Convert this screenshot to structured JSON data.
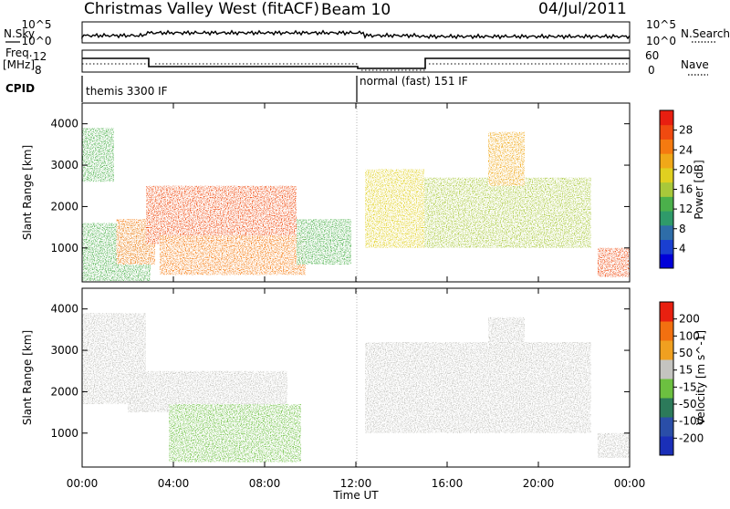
{
  "header": {
    "title": "Christmas Valley West (fitACF)",
    "beam": "Beam 10",
    "date": "04/Jul/2011"
  },
  "status_panel": {
    "nsky_label": "N.Sky",
    "nsky_ticks": [
      "10^5",
      "10^0"
    ],
    "nsearch_label": "N.Search",
    "freq_label_1": "Freq.",
    "freq_label_2": "[MHz]",
    "freq_ticks": [
      "12",
      "8"
    ],
    "nave_label": "Nave",
    "nave_ticks": [
      "60",
      "0"
    ],
    "right_ticks": [
      "10^5",
      "10^0"
    ],
    "cpid_label": "CPID",
    "cpid_segments": [
      "themis 3300 IF",
      "normal (fast) 151 IF"
    ]
  },
  "chart_data": [
    {
      "type": "heatmap",
      "variable": "Power",
      "ylabel": "Slant Range [km]",
      "ylim": [
        180,
        4500
      ],
      "yticks": [
        1000,
        2000,
        3000,
        4000
      ],
      "xlim": [
        "00:00",
        "00:00"
      ],
      "grid": false,
      "colorbar": {
        "label": "Power [dB]",
        "range": [
          0,
          32
        ],
        "ticks": [
          "28",
          "24",
          "20",
          "16",
          "12",
          "8",
          "4"
        ],
        "colors": [
          "#0000d8",
          "#1a3fd0",
          "#2e6da8",
          "#2f9a6a",
          "#4bb04b",
          "#a8c83a",
          "#e0d020",
          "#f0a818",
          "#f57a10",
          "#f04a10",
          "#e81e10"
        ]
      },
      "regions": [
        {
          "start_h": 0.0,
          "end_h": 1.4,
          "range_min": 2600,
          "range_max": 3900,
          "power_db": 12
        },
        {
          "start_h": 0.0,
          "end_h": 3.0,
          "range_min": 200,
          "range_max": 1600,
          "power_db": 14
        },
        {
          "start_h": 1.5,
          "end_h": 3.2,
          "range_min": 600,
          "range_max": 1700,
          "power_db": 26
        },
        {
          "start_h": 2.8,
          "end_h": 9.4,
          "range_min": 1100,
          "range_max": 2500,
          "power_db": 28
        },
        {
          "start_h": 3.4,
          "end_h": 9.8,
          "range_min": 350,
          "range_max": 1300,
          "power_db": 26
        },
        {
          "start_h": 9.4,
          "end_h": 11.8,
          "range_min": 600,
          "range_max": 1700,
          "power_db": 14
        },
        {
          "start_h": 12.4,
          "end_h": 15.0,
          "range_min": 1000,
          "range_max": 2900,
          "power_db": 18
        },
        {
          "start_h": 15.0,
          "end_h": 22.3,
          "range_min": 1000,
          "range_max": 2700,
          "power_db": 16
        },
        {
          "start_h": 17.8,
          "end_h": 19.4,
          "range_min": 2500,
          "range_max": 3800,
          "power_db": 22
        },
        {
          "start_h": 22.6,
          "end_h": 24.0,
          "range_min": 300,
          "range_max": 1000,
          "power_db": 28
        }
      ]
    },
    {
      "type": "heatmap",
      "variable": "Velocity",
      "ylabel": "Slant Range [km]",
      "xlabel": "Time UT",
      "ylim": [
        180,
        4500
      ],
      "yticks": [
        1000,
        2000,
        3000,
        4000
      ],
      "xlim": [
        "00:00",
        "00:00"
      ],
      "xticks": [
        "00:00",
        "04:00",
        "08:00",
        "12:00",
        "16:00",
        "20:00",
        "00:00"
      ],
      "grid": false,
      "colorbar": {
        "label": "Velocity [m s^-1]",
        "range": [
          -250,
          250
        ],
        "ticks": [
          "200",
          "100",
          "50",
          "15",
          "-15",
          "-50",
          "-100",
          "-200"
        ],
        "colors": [
          "#1a2fb8",
          "#2a4ea8",
          "#2c7a5a",
          "#6cc040",
          "#c4c4c0",
          "#f0a020",
          "#f27010",
          "#e82010"
        ]
      },
      "regions": [
        {
          "start_h": 0.0,
          "end_h": 2.8,
          "range_min": 1700,
          "range_max": 3900,
          "velocity": 0
        },
        {
          "start_h": 2.0,
          "end_h": 9.0,
          "range_min": 1500,
          "range_max": 2500,
          "velocity": 0
        },
        {
          "start_h": 3.8,
          "end_h": 9.6,
          "range_min": 300,
          "range_max": 1700,
          "velocity": -60
        },
        {
          "start_h": 12.4,
          "end_h": 22.3,
          "range_min": 1000,
          "range_max": 3200,
          "velocity": 0
        },
        {
          "start_h": 17.8,
          "end_h": 19.4,
          "range_min": 2600,
          "range_max": 3800,
          "velocity": 0
        },
        {
          "start_h": 22.6,
          "end_h": 24.0,
          "range_min": 400,
          "range_max": 1000,
          "velocity": 0
        }
      ]
    }
  ]
}
